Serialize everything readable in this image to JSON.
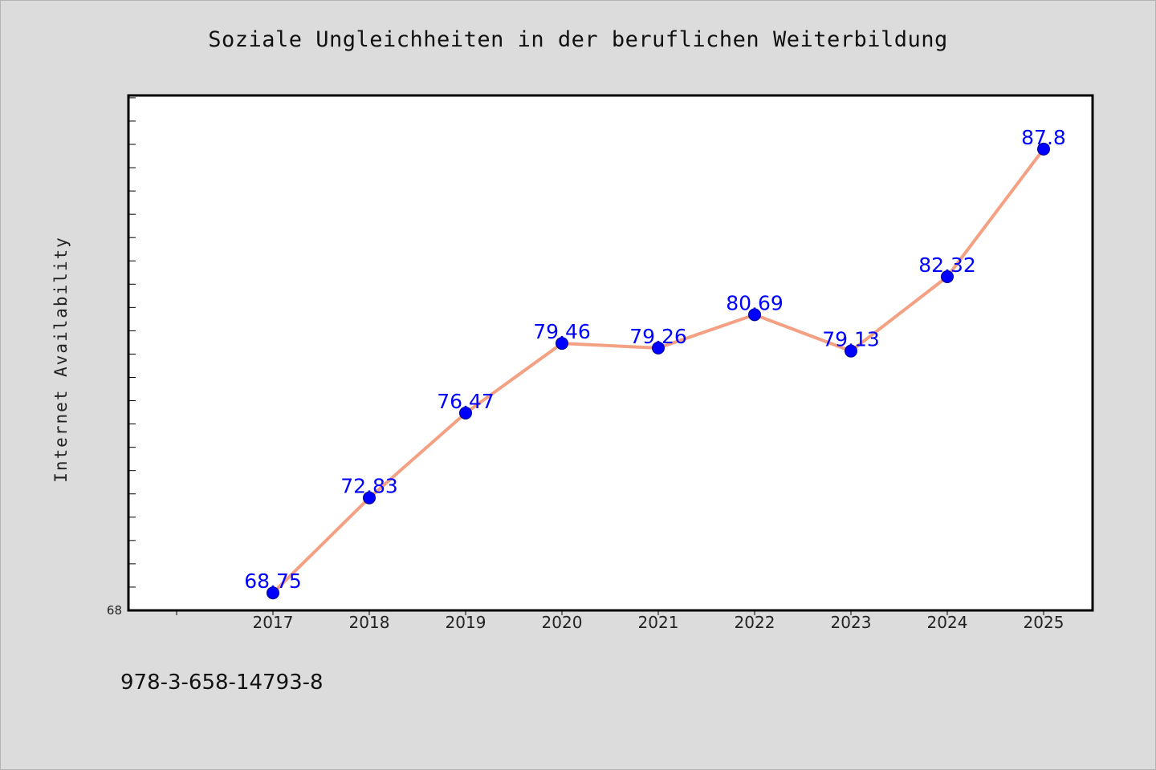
{
  "colors": {
    "background": "#dcdcdc",
    "plot_background": "#ffffff",
    "line": "#f4a083",
    "marker": "#0000ff",
    "data_label": "#0000ff"
  },
  "chart_data": {
    "type": "line",
    "title": "Soziale Ungleichheiten in der beruflichen Weiterbildung",
    "xlabel": "",
    "ylabel": "Internet Availability",
    "categories": [
      "2017",
      "2018",
      "2019",
      "2020",
      "2021",
      "2022",
      "2023",
      "2024",
      "2025"
    ],
    "values": [
      68.75,
      72.83,
      76.47,
      79.46,
      79.26,
      80.69,
      79.13,
      82.32,
      87.8
    ],
    "data_labels": [
      "68.75",
      "72.83",
      "76.47",
      "79.46",
      "79.26",
      "80.69",
      "79.13",
      "82.32",
      "87.8"
    ],
    "ylim": [
      68,
      90.1
    ],
    "ytick_labels": [
      "68"
    ],
    "grid": false,
    "legend": "none"
  },
  "footer": {
    "text": "978-3-658-14793-8"
  }
}
